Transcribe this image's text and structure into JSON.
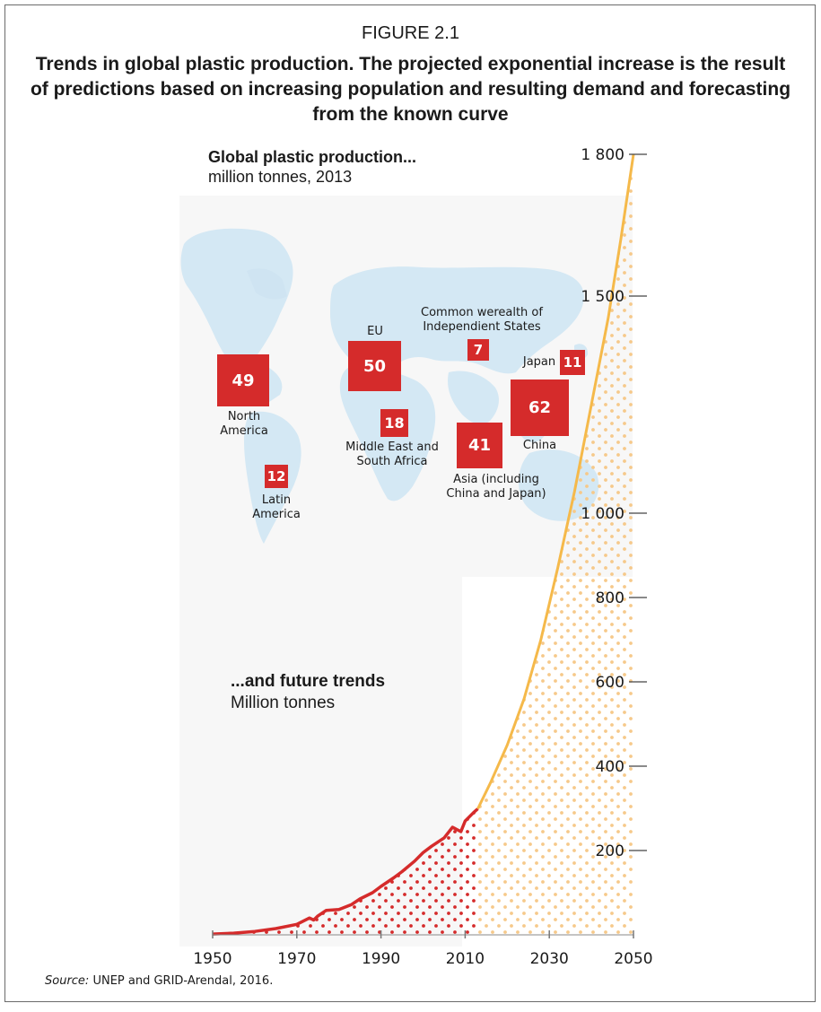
{
  "figure_label": "FIGURE 2.1",
  "figure_title": "Trends in global plastic production. The projected exponential increase is the result of predictions based on increasing population and resulting demand and forecasting from the known curve",
  "map": {
    "heading_bold": "Global plastic production...",
    "heading_sub": "million tonnes, 2013",
    "regions": [
      {
        "value": "49",
        "label": "North\nAmerica"
      },
      {
        "value": "50",
        "label": "EU"
      },
      {
        "value": "7",
        "label": "Common werealth of\nIndependient States"
      },
      {
        "value": "11",
        "label": "Japan"
      },
      {
        "value": "18",
        "label": "Middle East and\nSouth Africa"
      },
      {
        "value": "62",
        "label": "China"
      },
      {
        "value": "41",
        "label": "Asia (including\nChina and Japan)"
      },
      {
        "value": "12",
        "label": "Latin\nAmerica"
      }
    ],
    "box_color": "#d52b2b"
  },
  "trend": {
    "heading_bold": "...and future trends",
    "heading_sub": "Million tonnes"
  },
  "source_label": "Source:",
  "source_text": " UNEP and GRID-Arendal, 2016.",
  "chart_data": {
    "type": "area",
    "title": "...and future trends",
    "ylabel": "Million tonnes",
    "xlim": [
      1950,
      2050
    ],
    "x_ticks": [
      "1950",
      "1970",
      "1990",
      "2010",
      "2030",
      "2050"
    ],
    "y_ticks": [
      "200",
      "400",
      "600",
      "800",
      "1 000",
      "1 500",
      "1 800"
    ],
    "series": [
      {
        "kind": "historical",
        "color": "#d52b2b",
        "x": [
          1950,
          1955,
          1960,
          1965,
          1970,
          1973,
          1974,
          1975,
          1977,
          1980,
          1983,
          1985,
          1988,
          1990,
          1993,
          1995,
          1998,
          2000,
          2002,
          2005,
          2007,
          2008,
          2009,
          2010,
          2012,
          2013
        ],
        "y": [
          2,
          4,
          8,
          15,
          25,
          40,
          35,
          45,
          58,
          60,
          72,
          85,
          100,
          115,
          135,
          150,
          175,
          195,
          210,
          230,
          255,
          250,
          245,
          270,
          290,
          299
        ]
      },
      {
        "kind": "projection",
        "color": "#f5b94a",
        "x": [
          2013,
          2016,
          2020,
          2024,
          2028,
          2032,
          2036,
          2040,
          2044,
          2047,
          2050
        ],
        "y": [
          299,
          360,
          450,
          560,
          700,
          870,
          1050,
          1250,
          1450,
          1620,
          1800
        ]
      }
    ]
  }
}
